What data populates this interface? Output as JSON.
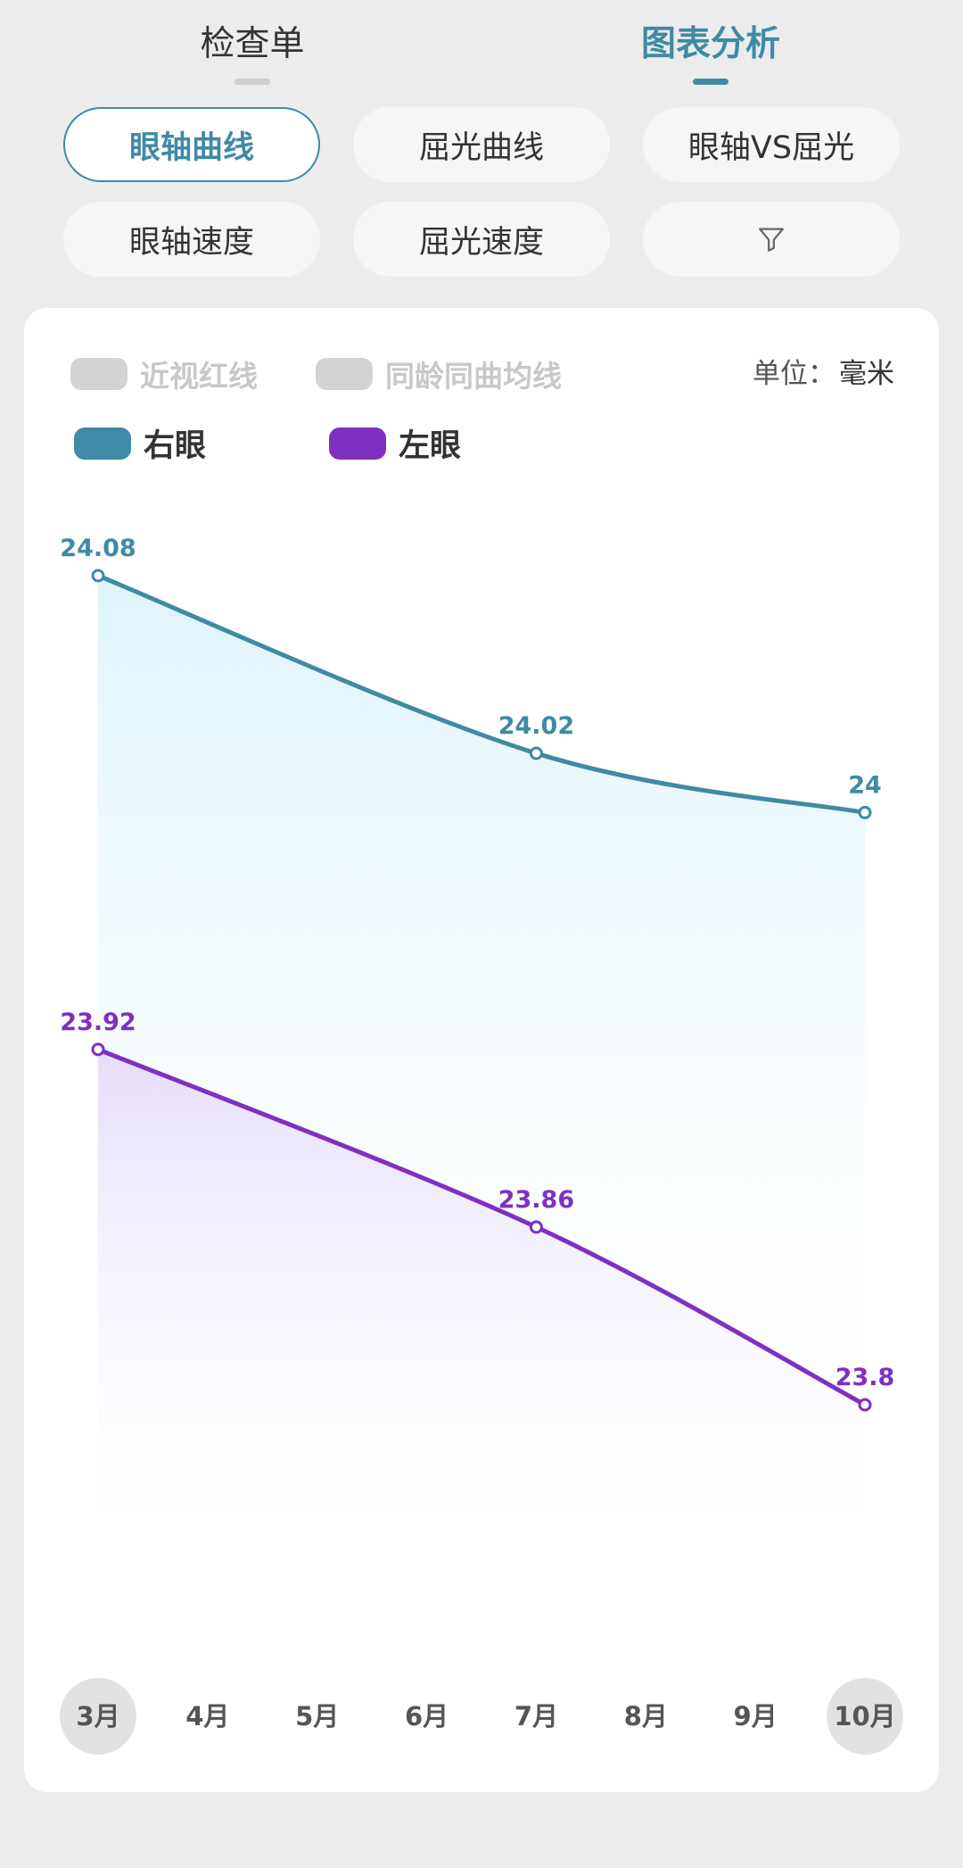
{
  "tabs": [
    {
      "label": "检查单",
      "active": false
    },
    {
      "label": "图表分析",
      "active": true
    }
  ],
  "chips": [
    {
      "label": "眼轴曲线",
      "active": true
    },
    {
      "label": "屈光曲线",
      "active": false
    },
    {
      "label": "眼轴VS屈光",
      "active": false
    },
    {
      "label": "眼轴速度",
      "active": false
    },
    {
      "label": "屈光速度",
      "active": false
    },
    {
      "icon": "filter-icon"
    }
  ],
  "legend": {
    "inactive": [
      "近视红线",
      "同龄同曲均线"
    ],
    "active": [
      {
        "label": "右眼",
        "color": "#3f8aa5"
      },
      {
        "label": "左眼",
        "color": "#7e30c2"
      }
    ]
  },
  "unit": {
    "label": "单位：",
    "value": "毫米"
  },
  "chart_data": {
    "type": "line",
    "x": [
      "3月",
      "4月",
      "5月",
      "6月",
      "7月",
      "8月",
      "9月",
      "10月"
    ],
    "highlighted_x": [
      "3月",
      "10月"
    ],
    "series": [
      {
        "name": "右眼",
        "color": "#3f8aa5",
        "points": [
          {
            "x": "3月",
            "y": 24.08
          },
          {
            "x": "7月",
            "y": 24.02
          },
          {
            "x": "10月",
            "y": 24
          }
        ]
      },
      {
        "name": "左眼",
        "color": "#7e30c2",
        "points": [
          {
            "x": "3月",
            "y": 23.92
          },
          {
            "x": "7月",
            "y": 23.86
          },
          {
            "x": "10月",
            "y": 23.8
          }
        ]
      }
    ],
    "ylim": [
      23.74,
      24.08
    ],
    "grid": false
  }
}
